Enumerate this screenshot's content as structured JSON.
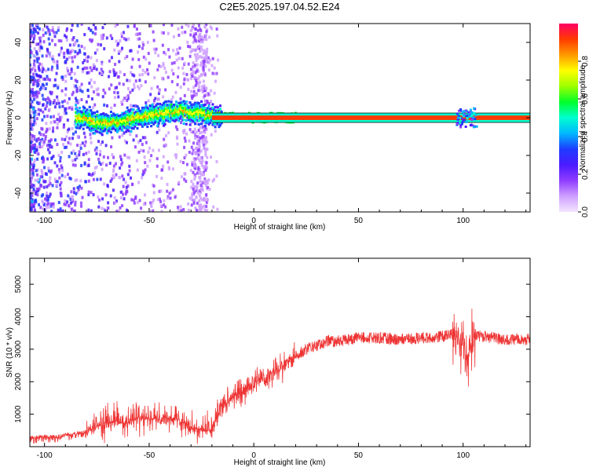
{
  "title": "C2E5.2025.197.04.52.E24",
  "chart_data": [
    {
      "type": "heatmap",
      "xlabel": "Height of straight line (km)",
      "ylabel": "Frequency (Hz)",
      "xlim": [
        -107,
        132
      ],
      "ylim": [
        -50,
        50
      ],
      "xticks": [
        -100,
        -50,
        0,
        50,
        100
      ],
      "yticks": [
        -40,
        -20,
        0,
        20,
        40
      ],
      "colorbar": {
        "label": "Normalized spectral amplitude",
        "range": [
          0,
          1
        ],
        "ticks": [
          0.0,
          0.2,
          0.4,
          0.6,
          0.8
        ],
        "tick_labels": [
          "0.0",
          "0.2",
          "0.4",
          "0.6",
          "0.8"
        ],
        "colors": [
          "#f4e6ff",
          "#cfa0ff",
          "#8f3cff",
          "#4b1bff",
          "#1f3cff",
          "#00b8ff",
          "#00ffd0",
          "#00ff2a",
          "#9cff00",
          "#ffff00",
          "#ff9a00",
          "#ff3a00",
          "#ff0066"
        ]
      },
      "band_center_hz": [
        [
          -85,
          0
        ],
        [
          -80,
          0
        ],
        [
          -75,
          -3
        ],
        [
          -70,
          -3
        ],
        [
          -65,
          -2
        ],
        [
          -60,
          -1
        ],
        [
          -55,
          0
        ],
        [
          -50,
          1
        ],
        [
          -45,
          2
        ],
        [
          -40,
          3
        ],
        [
          -35,
          4
        ],
        [
          -30,
          3
        ],
        [
          -25,
          2
        ],
        [
          -20,
          1
        ],
        [
          -15,
          0
        ],
        [
          -10,
          0
        ],
        [
          0,
          0
        ],
        [
          20,
          0
        ],
        [
          90,
          0
        ],
        [
          100,
          1
        ],
        [
          105,
          0
        ],
        [
          132,
          0
        ]
      ],
      "grid": false,
      "legend": "colorbar-right"
    },
    {
      "type": "line",
      "xlabel": "Height of straight line (km)",
      "ylabel": "SNR (10 * v/v)",
      "xlim": [
        -107,
        132
      ],
      "ylim": [
        0,
        5800
      ],
      "xticks": [
        -100,
        -50,
        0,
        50,
        100
      ],
      "yticks": [
        1000,
        2000,
        3000,
        4000,
        5000
      ],
      "series": [
        {
          "color": "#ee3333",
          "x": [
            -107,
            -100,
            -95,
            -90,
            -85,
            -80,
            -75,
            -70,
            -65,
            -60,
            -55,
            -50,
            -45,
            -40,
            -35,
            -30,
            -25,
            -20,
            -15,
            -10,
            -5,
            0,
            5,
            10,
            15,
            20,
            25,
            30,
            35,
            40,
            45,
            50,
            60,
            70,
            80,
            90,
            95,
            98,
            100,
            102,
            104,
            106,
            110,
            120,
            132
          ],
          "y": [
            200,
            250,
            250,
            300,
            350,
            400,
            600,
            700,
            700,
            700,
            850,
            800,
            800,
            850,
            750,
            500,
            450,
            500,
            1300,
            1550,
            1700,
            1950,
            2100,
            2300,
            2500,
            2800,
            3000,
            3100,
            3250,
            3250,
            3300,
            3350,
            3350,
            3300,
            3350,
            3400,
            3450,
            3300,
            3200,
            2800,
            3100,
            3400,
            3400,
            3300,
            3300
          ]
        }
      ],
      "grid": false
    }
  ]
}
